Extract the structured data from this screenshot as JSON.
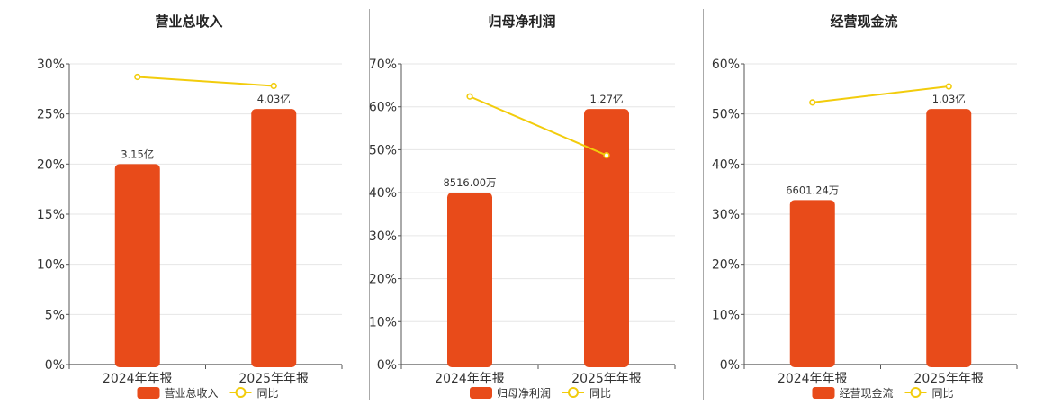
{
  "colors": {
    "bar": "#E84B1A",
    "line": "#F2CC0C",
    "grid": "#E6E6E6",
    "axis": "#555555",
    "divider": "#AAAAAA"
  },
  "chart_data": [
    {
      "type": "bar",
      "title": "营业总收入",
      "categories": [
        "2024年年报",
        "2025年年报"
      ],
      "y_ticks": [
        "0%",
        "5%",
        "10%",
        "15%",
        "20%",
        "25%",
        "30%"
      ],
      "ylim": [
        0,
        30
      ],
      "series": [
        {
          "name": "营业总收入",
          "kind": "bar",
          "values": [
            20,
            25.5
          ],
          "labels": [
            "3.15亿",
            "4.03亿"
          ]
        },
        {
          "name": "同比",
          "kind": "line",
          "values": [
            28.7,
            27.8
          ]
        }
      ],
      "legend": "bottom-center",
      "grid": true
    },
    {
      "type": "bar",
      "title": "归母净利润",
      "categories": [
        "2024年年报",
        "2025年年报"
      ],
      "y_ticks": [
        "0%",
        "10%",
        "20%",
        "30%",
        "40%",
        "50%",
        "60%",
        "70%"
      ],
      "ylim": [
        0,
        70
      ],
      "series": [
        {
          "name": "归母净利润",
          "kind": "bar",
          "values": [
            40,
            59.5
          ],
          "labels": [
            "8516.00万",
            "1.27亿"
          ]
        },
        {
          "name": "同比",
          "kind": "line",
          "values": [
            62.4,
            48.7
          ]
        }
      ],
      "legend": "bottom-center",
      "grid": true
    },
    {
      "type": "bar",
      "title": "经营现金流",
      "categories": [
        "2024年年报",
        "2025年年报"
      ],
      "y_ticks": [
        "0%",
        "10%",
        "20%",
        "30%",
        "40%",
        "50%",
        "60%"
      ],
      "ylim": [
        0,
        60
      ],
      "series": [
        {
          "name": "经营现金流",
          "kind": "bar",
          "values": [
            32.8,
            51
          ],
          "labels": [
            "6601.24万",
            "1.03亿"
          ]
        },
        {
          "name": "同比",
          "kind": "line",
          "values": [
            52.3,
            55.5
          ]
        }
      ],
      "legend": "bottom-center",
      "grid": true
    }
  ]
}
